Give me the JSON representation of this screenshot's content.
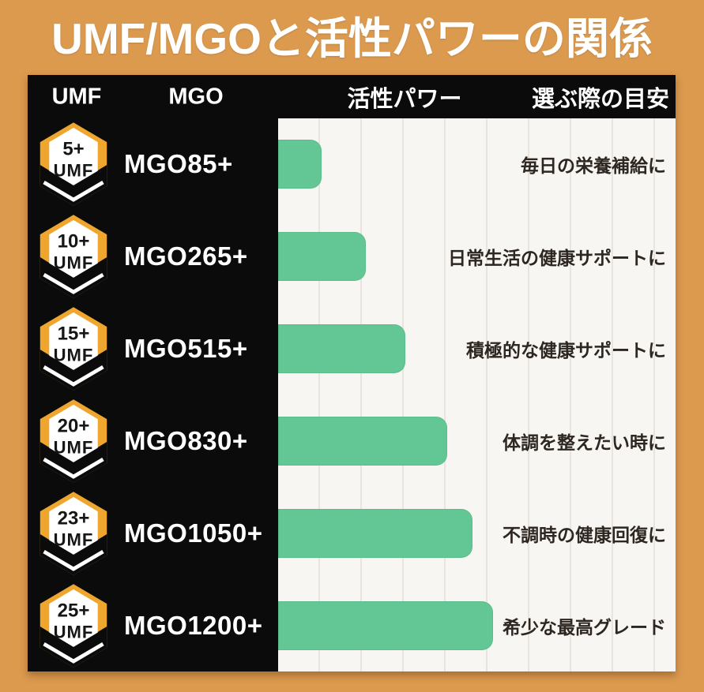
{
  "title": "UMF/MGOと活性パワーの関係",
  "header": {
    "umf": "UMF",
    "mgo": "MGO",
    "power": "活性パワー",
    "guide": "選ぶ際の目安"
  },
  "rows": [
    {
      "umf": "5+",
      "umf_word": "UMF",
      "mgo": "MGO85+",
      "guide": "毎日の栄養補給に",
      "bar_percent": 11
    },
    {
      "umf": "10+",
      "umf_word": "UMF",
      "mgo": "MGO265+",
      "guide": "日常生活の健康サポートに",
      "bar_percent": 22
    },
    {
      "umf": "15+",
      "umf_word": "UMF",
      "mgo": "MGO515+",
      "guide": "積極的な健康サポートに",
      "bar_percent": 32
    },
    {
      "umf": "20+",
      "umf_word": "UMF",
      "mgo": "MGO830+",
      "guide": "体調を整えたい時に",
      "bar_percent": 42.5
    },
    {
      "umf": "23+",
      "umf_word": "UMF",
      "mgo": "MGO1050+",
      "guide": "不調時の健康回復に",
      "bar_percent": 49
    },
    {
      "umf": "25+",
      "umf_word": "UMF",
      "mgo": "MGO1200+",
      "guide": "希少な最高グレード",
      "bar_percent": 54
    }
  ],
  "colors": {
    "background_orange": "#dc9a4f",
    "panel_black": "#0b0b0b",
    "chart_background": "#f7f6f2",
    "gridline": "#e8e5de",
    "bar_green": "#62c794",
    "badge_gold": "#efa62f",
    "badge_white": "#ffffff",
    "guide_text": "#2e2620",
    "header_text": "#ffffff"
  },
  "chart_data": {
    "type": "bar",
    "orientation": "horizontal",
    "title": "UMF/MGOと活性パワーの関係",
    "categories": [
      "UMF 5+ / MGO85+",
      "UMF 10+ / MGO265+",
      "UMF 15+ / MGO515+",
      "UMF 20+ / MGO830+",
      "UMF 23+ / MGO1050+",
      "UMF 25+ / MGO1200+"
    ],
    "series": [
      {
        "name": "活性パワー",
        "values": [
          11,
          22,
          32,
          42.5,
          49,
          54
        ]
      }
    ],
    "value_note": "relative bar length as % of chart-column width (no numeric axis labels shown)",
    "xlabel": "活性パワー",
    "ylabel": "",
    "axis_range": [
      0,
      100
    ],
    "grid": "vertical gridlines, no tick labels",
    "legend_position": "none",
    "annotations": [
      "毎日の栄養補給に",
      "日常生活の健康サポートに",
      "積極的な健康サポートに",
      "体調を整えたい時に",
      "不調時の健康回復に",
      "希少な最高グレード"
    ]
  }
}
